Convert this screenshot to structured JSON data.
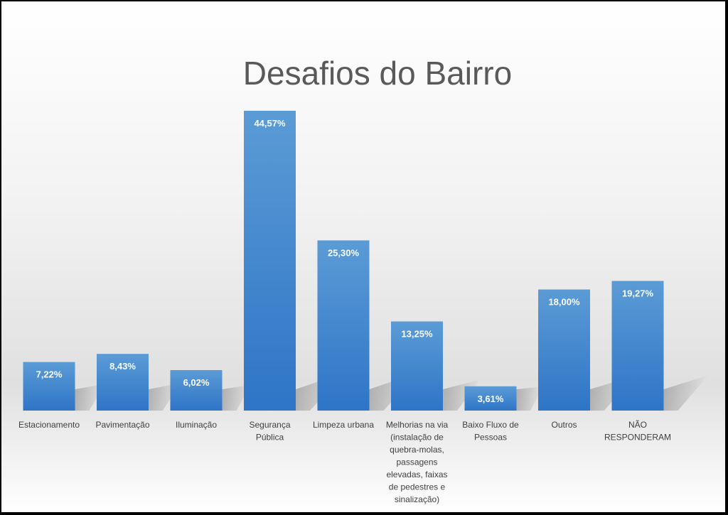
{
  "colors": {
    "bar_top": "#5b9bd5",
    "bar_bottom": "#2e75c7",
    "title": "#595959",
    "label": "#404040"
  },
  "chart_data": {
    "type": "bar",
    "title": "Desafios do Bairro",
    "xlabel": "",
    "ylabel": "",
    "ylim": [
      0,
      50
    ],
    "grid": false,
    "legend": "none",
    "categories": [
      [
        "Estacionamento"
      ],
      [
        "Pavimentação"
      ],
      [
        "Iluminação"
      ],
      [
        "Segurança",
        "Pública"
      ],
      [
        "Limpeza urbana"
      ],
      [
        "Melhorias na via",
        "(instalação de",
        "quebra-molas,",
        "passagens",
        "elevadas, faixas",
        "de pedestres e",
        "sinalização)"
      ],
      [
        "Baixo Fluxo de",
        "Pessoas"
      ],
      [
        "Outros"
      ],
      [
        "NÃO",
        "RESPONDERAM"
      ]
    ],
    "values": [
      7.22,
      8.43,
      6.02,
      44.57,
      25.3,
      13.25,
      3.61,
      18.0,
      19.27
    ],
    "data_labels": [
      "7,22%",
      "8,43%",
      "6,02%",
      "44,57%",
      "25,30%",
      "13,25%",
      "3,61%",
      "18,00%",
      "19,27%"
    ]
  }
}
